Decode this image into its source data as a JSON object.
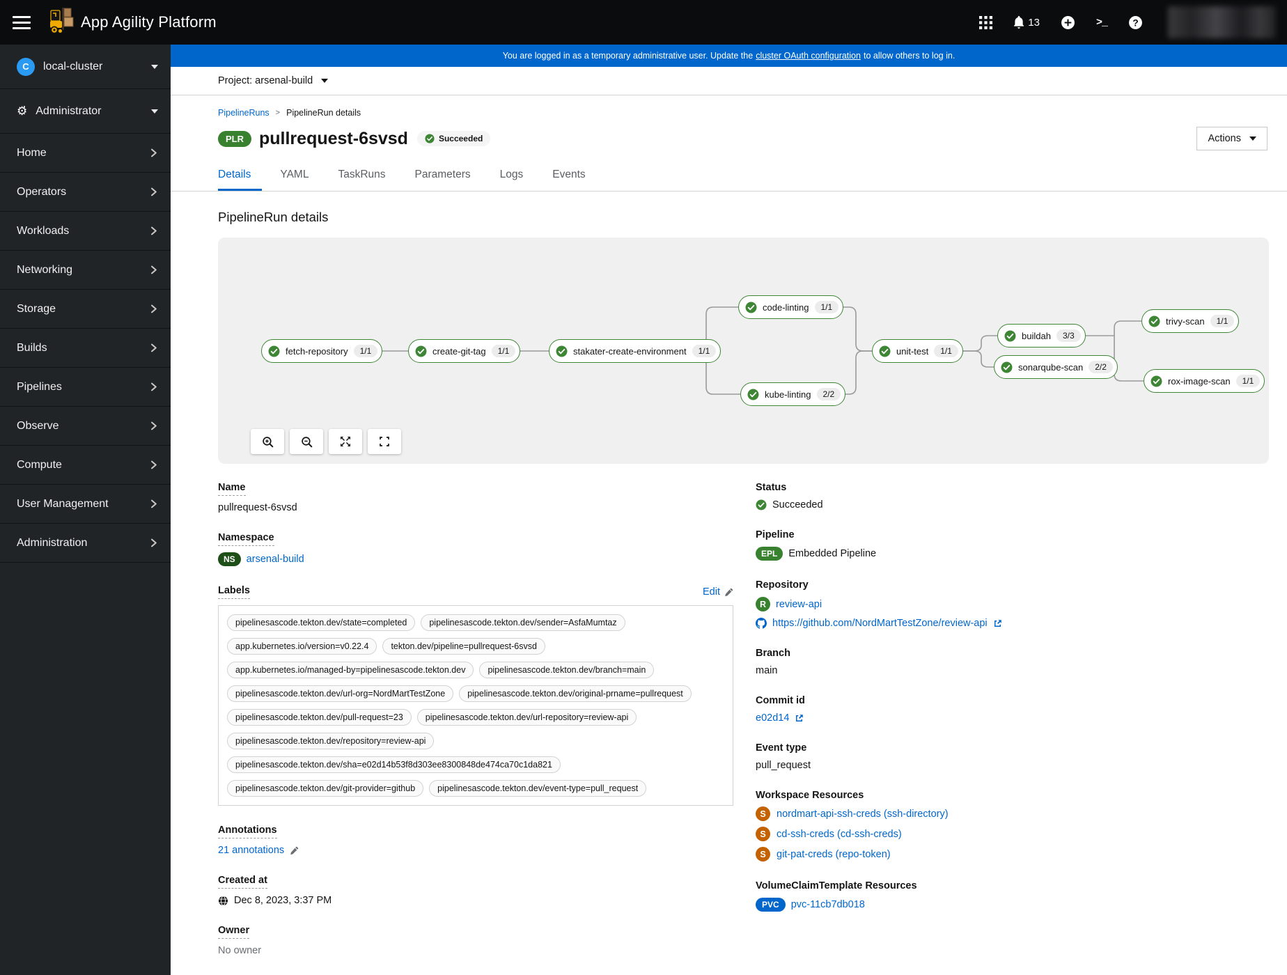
{
  "masthead": {
    "title": "App Agility Platform",
    "notification_count": "13"
  },
  "sidebar": {
    "cluster_badge": "C",
    "cluster_label": "local-cluster",
    "perspective_label": "Administrator",
    "items": [
      {
        "label": "Home"
      },
      {
        "label": "Operators"
      },
      {
        "label": "Workloads"
      },
      {
        "label": "Networking"
      },
      {
        "label": "Storage"
      },
      {
        "label": "Builds"
      },
      {
        "label": "Pipelines"
      },
      {
        "label": "Observe"
      },
      {
        "label": "Compute"
      },
      {
        "label": "User Management"
      },
      {
        "label": "Administration"
      }
    ]
  },
  "banner": {
    "text_before": "You are logged in as a temporary administrative user. Update the",
    "link_text": "cluster OAuth configuration",
    "text_after": "to allow others to log in."
  },
  "project_bar": {
    "label": "Project: arsenal-build"
  },
  "page": {
    "breadcrumb": [
      {
        "label": "PipelineRuns",
        "link": true
      },
      {
        "label": "PipelineRun details",
        "link": false
      }
    ],
    "resource_badge": "PLR",
    "title": "pullrequest-6svsd",
    "status_badge": "Succeeded",
    "actions_label": "Actions",
    "tabs": [
      {
        "label": "Details",
        "active": true
      },
      {
        "label": "YAML"
      },
      {
        "label": "TaskRuns"
      },
      {
        "label": "Parameters"
      },
      {
        "label": "Logs"
      },
      {
        "label": "Events"
      }
    ],
    "section_title": "PipelineRun details"
  },
  "pipeline_graph": {
    "tasks": [
      {
        "id": "fetch-repository",
        "label": "fetch-repository",
        "runs": "1/1",
        "status": "succeeded"
      },
      {
        "id": "create-git-tag",
        "label": "create-git-tag",
        "runs": "1/1",
        "status": "succeeded"
      },
      {
        "id": "stakater-create-environment",
        "label": "stakater-create-environment",
        "runs": "1/1",
        "status": "succeeded"
      },
      {
        "id": "code-linting",
        "label": "code-linting",
        "runs": "1/1",
        "status": "succeeded"
      },
      {
        "id": "kube-linting",
        "label": "kube-linting",
        "runs": "2/2",
        "status": "succeeded"
      },
      {
        "id": "unit-test",
        "label": "unit-test",
        "runs": "1/1",
        "status": "succeeded"
      },
      {
        "id": "buildah",
        "label": "buildah",
        "runs": "3/3",
        "status": "succeeded"
      },
      {
        "id": "sonarqube-scan",
        "label": "sonarqube-scan",
        "runs": "2/2",
        "status": "succeeded"
      },
      {
        "id": "trivy-scan",
        "label": "trivy-scan",
        "runs": "1/1",
        "status": "succeeded"
      },
      {
        "id": "rox-image-scan",
        "label": "rox-image-scan",
        "runs": "1/1",
        "status": "succeeded"
      }
    ],
    "edges": [
      {
        "from": "fetch-repository",
        "to": "create-git-tag"
      },
      {
        "from": "create-git-tag",
        "to": "stakater-create-environment"
      },
      {
        "from": "stakater-create-environment",
        "to": "code-linting"
      },
      {
        "from": "stakater-create-environment",
        "to": "kube-linting"
      },
      {
        "from": "code-linting",
        "to": "unit-test"
      },
      {
        "from": "kube-linting",
        "to": "unit-test"
      },
      {
        "from": "unit-test",
        "to": "buildah"
      },
      {
        "from": "unit-test",
        "to": "sonarqube-scan"
      },
      {
        "from": "buildah",
        "to": "trivy-scan"
      },
      {
        "from": "sonarqube-scan",
        "to": "rox-image-scan"
      }
    ]
  },
  "details": {
    "left": {
      "name_label": "Name",
      "name": "pullrequest-6svsd",
      "namespace_label": "Namespace",
      "namespace_badge": "NS",
      "namespace": "arsenal-build",
      "labels_label": "Labels",
      "edit_label": "Edit",
      "labels": [
        "pipelinesascode.tekton.dev/state=completed",
        "pipelinesascode.tekton.dev/sender=AsfaMumtaz",
        "app.kubernetes.io/version=v0.22.4",
        "tekton.dev/pipeline=pullrequest-6svsd",
        "app.kubernetes.io/managed-by=pipelinesascode.tekton.dev",
        "pipelinesascode.tekton.dev/branch=main",
        "pipelinesascode.tekton.dev/url-org=NordMartTestZone",
        "pipelinesascode.tekton.dev/original-prname=pullrequest",
        "pipelinesascode.tekton.dev/pull-request=23",
        "pipelinesascode.tekton.dev/url-repository=review-api",
        "pipelinesascode.tekton.dev/repository=review-api",
        "pipelinesascode.tekton.dev/sha=e02d14b53f8d303ee8300848de474ca70c1da821",
        "pipelinesascode.tekton.dev/git-provider=github",
        "pipelinesascode.tekton.dev/event-type=pull_request"
      ],
      "annotations_label": "Annotations",
      "annotations_link": "21 annotations",
      "created_label": "Created at",
      "created": "Dec 8, 2023, 3:37 PM",
      "owner_label": "Owner",
      "owner": "No owner"
    },
    "right": {
      "status_label": "Status",
      "status": "Succeeded",
      "pipeline_label": "Pipeline",
      "pipeline_badge": "EPL",
      "pipeline": "Embedded Pipeline",
      "repository_label": "Repository",
      "repository_badge": "R",
      "repository": "review-api",
      "repository_url": "https://github.com/NordMartTestZone/review-api",
      "branch_label": "Branch",
      "branch": "main",
      "commit_label": "Commit id",
      "commit": "e02d14",
      "event_type_label": "Event type",
      "event_type": "pull_request",
      "workspace_label": "Workspace Resources",
      "workspaces": [
        {
          "badge": "S",
          "label": "nordmart-api-ssh-creds (ssh-directory)"
        },
        {
          "badge": "S",
          "label": "cd-ssh-creds (cd-ssh-creds)"
        },
        {
          "badge": "S",
          "label": "git-pat-creds (repo-token)"
        }
      ],
      "vct_label": "VolumeClaimTemplate Resources",
      "vct_badge": "PVC",
      "vct": "pvc-11cb7db018"
    }
  },
  "colors": {
    "accent_blue": "#0066cc",
    "success_green": "#3e8635",
    "badge_green": "#38812f",
    "namespace_green": "#1e4f18",
    "secret_orange": "#c46100",
    "banner_blue": "#0066cc",
    "masthead_black": "#0b0c0d",
    "sidebar_dark": "#212427",
    "graph_card_gray": "#f0f0f0"
  }
}
